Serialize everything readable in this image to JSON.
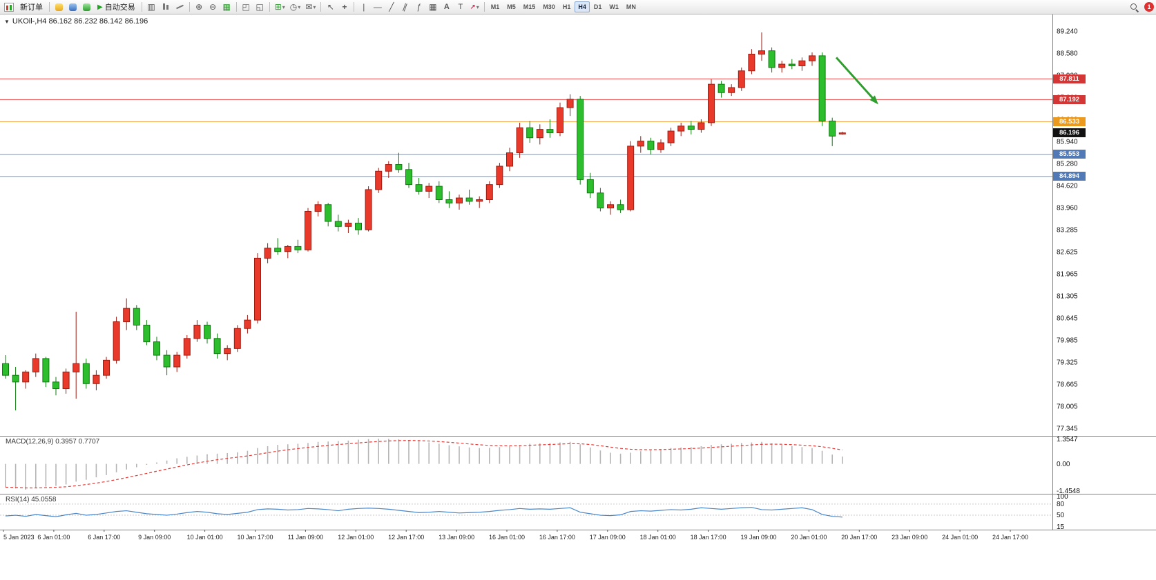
{
  "toolbar": {
    "new_order_label": "新订单",
    "autotrade_label": "自动交易",
    "timeframes": [
      "M1",
      "M5",
      "M15",
      "M30",
      "H1",
      "H4",
      "D1",
      "W1",
      "MN"
    ],
    "active_timeframe": "H4",
    "notification_count": "1"
  },
  "chart_data": {
    "type": "candlestick",
    "symbol": "UKOil-",
    "timeframe": "H4",
    "title": "UKOil-,H4 86.162 86.232 86.142 86.196",
    "current_bar": {
      "open": 86.162,
      "high": 86.232,
      "low": 86.142,
      "close": 86.196
    },
    "up_color": "#e8392b",
    "up_wick": "#9e1b10",
    "down_color": "#2dbe2d",
    "down_wick": "#0e7a0e",
    "grid": false,
    "ylim": [
      77.0,
      89.6
    ],
    "price_axis_labels": [
      "89.240",
      "88.580",
      "87.920",
      "87.260",
      "86.600",
      "85.940",
      "85.280",
      "84.620",
      "83.960",
      "83.285",
      "82.625",
      "81.965",
      "81.305",
      "80.645",
      "79.985",
      "79.325",
      "78.665",
      "78.005",
      "77.345"
    ],
    "time_labels": [
      "5 Jan 2023",
      "6 Jan 01:00",
      "6 Jan 17:00",
      "9 Jan 09:00",
      "10 Jan 01:00",
      "10 Jan 17:00",
      "11 Jan 09:00",
      "12 Jan 01:00",
      "12 Jan 17:00",
      "13 Jan 09:00",
      "16 Jan 01:00",
      "16 Jan 17:00",
      "17 Jan 09:00",
      "18 Jan 01:00",
      "18 Jan 17:00",
      "19 Jan 09:00",
      "20 Jan 01:00",
      "20 Jan 17:00",
      "23 Jan 09:00",
      "24 Jan 01:00",
      "24 Jan 17:00"
    ],
    "ohlc": [
      [
        79.3,
        79.55,
        78.85,
        78.95
      ],
      [
        78.95,
        79.2,
        77.9,
        78.75
      ],
      [
        78.75,
        79.1,
        78.55,
        79.05
      ],
      [
        79.05,
        79.6,
        78.9,
        79.45
      ],
      [
        79.45,
        79.5,
        78.6,
        78.75
      ],
      [
        78.75,
        78.9,
        78.35,
        78.55
      ],
      [
        78.55,
        79.15,
        78.4,
        79.05
      ],
      [
        79.05,
        80.85,
        78.25,
        79.3
      ],
      [
        79.3,
        79.45,
        78.55,
        78.7
      ],
      [
        78.7,
        79.1,
        78.5,
        78.95
      ],
      [
        78.95,
        79.5,
        78.85,
        79.4
      ],
      [
        79.4,
        80.7,
        79.3,
        80.55
      ],
      [
        80.55,
        81.25,
        80.3,
        80.95
      ],
      [
        80.95,
        81.05,
        80.3,
        80.45
      ],
      [
        80.45,
        80.6,
        79.85,
        79.95
      ],
      [
        79.95,
        80.1,
        79.4,
        79.55
      ],
      [
        79.55,
        79.7,
        78.95,
        79.2
      ],
      [
        79.2,
        79.65,
        79.05,
        79.55
      ],
      [
        79.55,
        80.15,
        79.45,
        80.05
      ],
      [
        80.05,
        80.6,
        79.95,
        80.45
      ],
      [
        80.45,
        80.55,
        79.9,
        80.05
      ],
      [
        80.05,
        80.2,
        79.45,
        79.6
      ],
      [
        79.6,
        79.85,
        79.4,
        79.75
      ],
      [
        79.75,
        80.45,
        79.65,
        80.35
      ],
      [
        80.35,
        80.75,
        80.2,
        80.6
      ],
      [
        80.6,
        82.6,
        80.5,
        82.45
      ],
      [
        82.45,
        82.9,
        82.3,
        82.75
      ],
      [
        82.75,
        83.05,
        82.55,
        82.65
      ],
      [
        82.65,
        82.85,
        82.45,
        82.8
      ],
      [
        82.8,
        83.0,
        82.6,
        82.7
      ],
      [
        82.7,
        83.95,
        82.65,
        83.85
      ],
      [
        83.85,
        84.15,
        83.7,
        84.05
      ],
      [
        84.05,
        84.1,
        83.4,
        83.55
      ],
      [
        83.55,
        83.75,
        83.25,
        83.4
      ],
      [
        83.4,
        83.6,
        83.2,
        83.5
      ],
      [
        83.5,
        83.65,
        83.15,
        83.3
      ],
      [
        83.3,
        84.6,
        83.25,
        84.5
      ],
      [
        84.5,
        85.15,
        84.4,
        85.05
      ],
      [
        85.05,
        85.35,
        84.85,
        85.25
      ],
      [
        85.25,
        85.6,
        85.0,
        85.1
      ],
      [
        85.1,
        85.3,
        84.55,
        84.65
      ],
      [
        84.65,
        84.85,
        84.35,
        84.45
      ],
      [
        84.45,
        84.7,
        84.25,
        84.6
      ],
      [
        84.6,
        84.75,
        84.1,
        84.2
      ],
      [
        84.2,
        84.45,
        83.95,
        84.1
      ],
      [
        84.1,
        84.35,
        83.9,
        84.25
      ],
      [
        84.25,
        84.5,
        84.05,
        84.15
      ],
      [
        84.15,
        84.3,
        83.95,
        84.2
      ],
      [
        84.2,
        84.75,
        84.1,
        84.65
      ],
      [
        84.65,
        85.3,
        84.55,
        85.2
      ],
      [
        85.2,
        85.75,
        85.05,
        85.6
      ],
      [
        85.6,
        86.5,
        85.45,
        86.35
      ],
      [
        86.35,
        86.55,
        85.9,
        86.05
      ],
      [
        86.05,
        86.45,
        85.85,
        86.3
      ],
      [
        86.3,
        86.6,
        86.05,
        86.2
      ],
      [
        86.2,
        87.1,
        86.1,
        86.95
      ],
      [
        86.95,
        87.35,
        86.7,
        87.2
      ],
      [
        87.2,
        87.3,
        84.65,
        84.8
      ],
      [
        84.8,
        85.0,
        84.25,
        84.4
      ],
      [
        84.4,
        84.55,
        83.85,
        83.95
      ],
      [
        83.95,
        84.15,
        83.75,
        84.05
      ],
      [
        84.05,
        84.2,
        83.8,
        83.9
      ],
      [
        83.9,
        85.95,
        83.85,
        85.8
      ],
      [
        85.8,
        86.1,
        85.6,
        85.95
      ],
      [
        85.95,
        86.05,
        85.55,
        85.7
      ],
      [
        85.7,
        86.0,
        85.6,
        85.9
      ],
      [
        85.9,
        86.35,
        85.8,
        86.25
      ],
      [
        86.25,
        86.5,
        86.1,
        86.4
      ],
      [
        86.4,
        86.55,
        86.15,
        86.3
      ],
      [
        86.3,
        86.6,
        86.2,
        86.5
      ],
      [
        86.5,
        87.8,
        86.4,
        87.65
      ],
      [
        87.65,
        87.75,
        87.25,
        87.4
      ],
      [
        87.4,
        87.65,
        87.3,
        87.55
      ],
      [
        87.55,
        88.15,
        87.45,
        88.05
      ],
      [
        88.05,
        88.7,
        87.95,
        88.55
      ],
      [
        88.55,
        89.2,
        88.35,
        88.65
      ],
      [
        88.65,
        88.75,
        88.0,
        88.15
      ],
      [
        88.15,
        88.35,
        88.0,
        88.25
      ],
      [
        88.25,
        88.4,
        88.1,
        88.2
      ],
      [
        88.2,
        88.45,
        88.05,
        88.35
      ],
      [
        88.35,
        88.6,
        88.2,
        88.5
      ],
      [
        88.5,
        88.6,
        86.4,
        86.55
      ],
      [
        86.55,
        86.65,
        85.8,
        86.1
      ],
      [
        86.162,
        86.232,
        86.142,
        86.196
      ]
    ],
    "levels": [
      {
        "price": 87.811,
        "label": "87.811",
        "line_color": "#e84d4d",
        "badge_color": "#d43535"
      },
      {
        "price": 87.192,
        "label": "87.192",
        "line_color": "#e84d4d",
        "badge_color": "#d43535"
      },
      {
        "price": 86.533,
        "label": "86.533",
        "line_color": "#f2a33c",
        "badge_color": "#ec9a1e"
      },
      {
        "price": 85.553,
        "label": "85.553",
        "line_color": "#7091c9",
        "badge_color": "#5079b5"
      },
      {
        "price": 84.894,
        "label": "84.894",
        "line_color": "#7091c9",
        "badge_color": "#5079b5"
      }
    ],
    "current_price": {
      "value": 86.196,
      "label": "86.196",
      "badge_color": "#111111"
    },
    "annotation_arrow": {
      "color": "#2f9e2f",
      "from": {
        "bar": 82.4,
        "price": 88.45
      },
      "to": {
        "bar": 86.2,
        "price": 87.17
      }
    },
    "indicators": {
      "macd": {
        "label": "MACD(12,26,9) 0.3957 0.7707",
        "params": "12,26,9",
        "value": 0.3957,
        "signal": 0.7707,
        "axis_labels": [
          "1.3547",
          "0.00",
          "-1.4548"
        ],
        "range": [
          -1.4548,
          1.3547
        ],
        "histogram_color": "#b5b5b5",
        "signal_color": "#e53935",
        "histogram": [
          -1.25,
          -1.32,
          -1.38,
          -1.3,
          -1.22,
          -1.18,
          -1.1,
          -0.95,
          -0.85,
          -0.72,
          -0.6,
          -0.45,
          -0.3,
          -0.18,
          -0.05,
          0.08,
          0.18,
          0.3,
          0.38,
          0.45,
          0.52,
          0.55,
          0.58,
          0.62,
          0.7,
          0.85,
          0.95,
          1.02,
          1.05,
          1.08,
          1.12,
          1.18,
          1.2,
          1.22,
          1.25,
          1.3,
          1.33,
          1.35,
          1.34,
          1.32,
          1.28,
          1.22,
          1.15,
          1.08,
          1.0,
          0.94,
          0.88,
          0.85,
          0.86,
          0.9,
          0.95,
          1.02,
          1.08,
          1.1,
          1.12,
          1.15,
          1.18,
          1.05,
          0.88,
          0.72,
          0.6,
          0.55,
          0.6,
          0.68,
          0.75,
          0.8,
          0.85,
          0.88,
          0.9,
          0.95,
          1.02,
          1.05,
          1.08,
          1.12,
          1.15,
          1.18,
          1.1,
          1.02,
          0.95,
          0.9,
          0.85,
          0.7,
          0.5,
          0.3957
        ]
      },
      "rsi": {
        "label": "RSI(14) 45.0558",
        "period": 14,
        "value": 45.0558,
        "axis_labels": [
          "100",
          "80",
          "50",
          "15"
        ],
        "axis_values": [
          100,
          80,
          50,
          15
        ],
        "levels": [
          80,
          50
        ],
        "line_color": "#4a86c8",
        "values": [
          48,
          50,
          47,
          52,
          49,
          46,
          51,
          55,
          50,
          52,
          56,
          60,
          62,
          58,
          54,
          52,
          50,
          53,
          57,
          60,
          58,
          54,
          52,
          55,
          58,
          65,
          67,
          66,
          64,
          65,
          68,
          67,
          65,
          62,
          66,
          68,
          69,
          68,
          66,
          63,
          60,
          57,
          58,
          60,
          58,
          56,
          57,
          58,
          60,
          63,
          65,
          68,
          66,
          67,
          66,
          68,
          70,
          58,
          54,
          50,
          49,
          51,
          60,
          62,
          61,
          63,
          65,
          64,
          66,
          70,
          68,
          66,
          68,
          70,
          71,
          65,
          64,
          66,
          68,
          70,
          65,
          52,
          47,
          45.06
        ]
      }
    }
  }
}
